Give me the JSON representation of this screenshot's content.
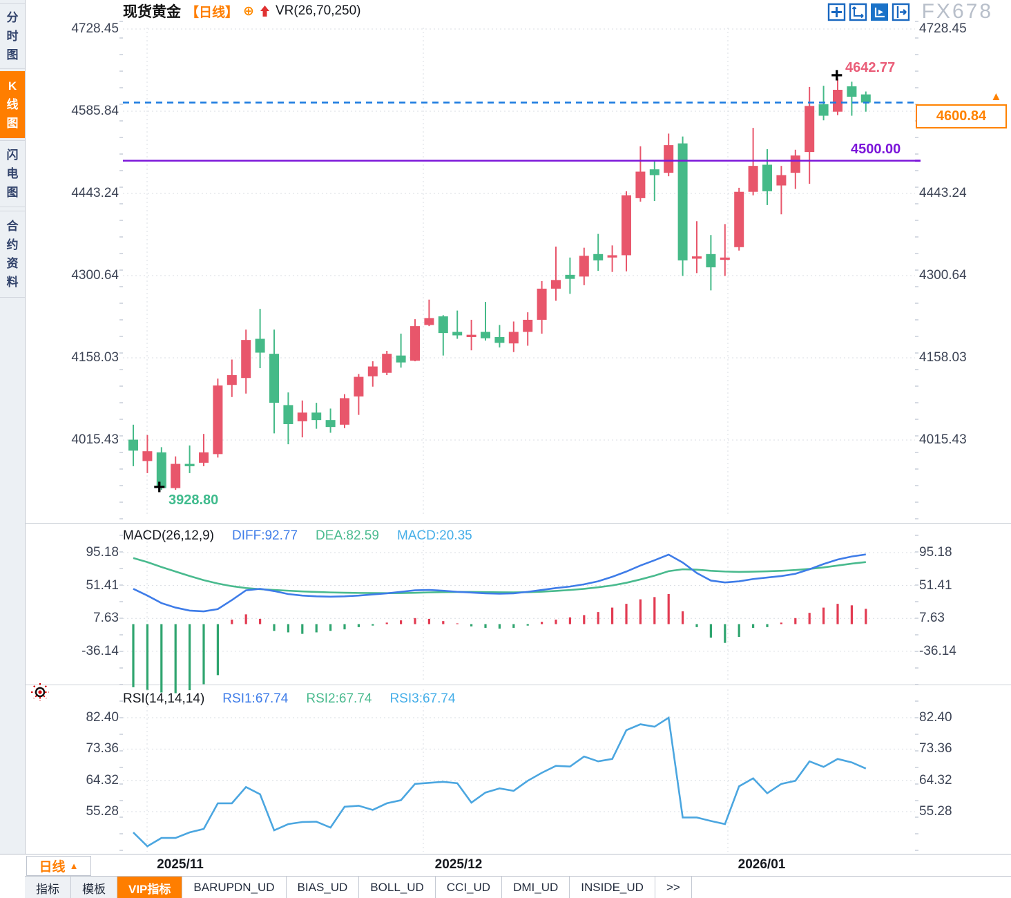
{
  "header": {
    "symbol": "现货黄金",
    "period_tag": "【日线】",
    "plus_glyph": "⊕",
    "indicator": "VR(26,70,250)"
  },
  "sidebar": {
    "items": [
      {
        "label": "分时图",
        "active": false
      },
      {
        "label": "K线图",
        "active": true
      },
      {
        "label": "闪电图",
        "active": false
      },
      {
        "label": "合约资料",
        "active": false
      }
    ]
  },
  "price_panel": {
    "high_label": "4642.77",
    "low_label": "3928.80",
    "current_price_label": "4600.84",
    "hline_label": "4500.00",
    "crosshair_glyph": "+",
    "arrow_glyph": "▲"
  },
  "macd_panel": {
    "title": "MACD(26,12,9)",
    "diff_label": "DIFF:92.77",
    "dea_label": "DEA:82.59",
    "macd_label": "MACD:20.35"
  },
  "rsi_panel": {
    "title": "RSI(14,14,14)",
    "rsi1_label": "RSI1:67.74",
    "rsi2_label": "RSI2:67.74",
    "rsi3_label": "RSI3:67.74"
  },
  "x_axis": {
    "labels": [
      "2025/11",
      "2025/12",
      "2026/01"
    ]
  },
  "period_button": {
    "label": "日线",
    "arrow": "▲"
  },
  "watermark": "FX678",
  "tabs": [
    {
      "label": "指标",
      "active": false
    },
    {
      "label": "模板",
      "active": false
    },
    {
      "label": "VIP指标",
      "active": true
    },
    {
      "label": "BARUPDN_UD",
      "active": false
    },
    {
      "label": "BIAS_UD",
      "active": false
    },
    {
      "label": "BOLL_UD",
      "active": false
    },
    {
      "label": "CCI_UD",
      "active": false
    },
    {
      "label": "DMI_UD",
      "active": false
    },
    {
      "label": "INSIDE_UD",
      "active": false
    },
    {
      "label": ">>",
      "active": false
    }
  ],
  "colors": {
    "up": "#e8566b",
    "down": "#45ba88",
    "hist_up": "#e23b52",
    "hist_down": "#2fa56f",
    "diff_line": "#3e7ce8",
    "dea_line": "#49ba8e",
    "rsi_line": "#4ba6e0",
    "accent_orange": "#ff7e00",
    "purple_line": "#7b16d9",
    "current_line_blue": "#1f7de0",
    "grid": "#d9dde3"
  },
  "chart_data": [
    {
      "type": "candlestick",
      "title": "现货黄金 日线",
      "x_axis_labels": [
        "2025/11",
        "2025/12",
        "2026/01"
      ],
      "y_ticks": [
        4728.45,
        4585.84,
        4443.24,
        4300.64,
        4158.03,
        4015.43
      ],
      "ylim": [
        3900,
        4728.45
      ],
      "high_marker": 4642.77,
      "low_marker": 3928.8,
      "current_price": 4600.84,
      "horizontal_line": 4500.0,
      "ohlc": [
        [
          4016,
          4042,
          3970,
          3997
        ],
        [
          3979,
          4024,
          3958,
          3996
        ],
        [
          3994,
          4003,
          3928.8,
          3932
        ],
        [
          3932,
          3987,
          3929,
          3974
        ],
        [
          3974,
          4006,
          3958,
          3970
        ],
        [
          3976,
          4026,
          3970,
          3994
        ],
        [
          3991,
          4122,
          3985,
          4110
        ],
        [
          4111,
          4155,
          4090,
          4128
        ],
        [
          4123,
          4207,
          4096,
          4189
        ],
        [
          4191,
          4243,
          4140,
          4167
        ],
        [
          4165,
          4207,
          4027,
          4080
        ],
        [
          4076,
          4098,
          4008,
          4043
        ],
        [
          4048,
          4084,
          4020,
          4063
        ],
        [
          4063,
          4080,
          4035,
          4050
        ],
        [
          4050,
          4070,
          4028,
          4038
        ],
        [
          4042,
          4095,
          4036,
          4088
        ],
        [
          4091,
          4130,
          4059,
          4125
        ],
        [
          4126,
          4152,
          4108,
          4143
        ],
        [
          4132,
          4170,
          4128,
          4165
        ],
        [
          4162,
          4200,
          4141,
          4150
        ],
        [
          4153,
          4225,
          4152,
          4213
        ],
        [
          4215,
          4259,
          4213,
          4227
        ],
        [
          4230,
          4232,
          4162,
          4201
        ],
        [
          4203,
          4240,
          4191,
          4197
        ],
        [
          4194,
          4224,
          4171,
          4198
        ],
        [
          4203,
          4255,
          4188,
          4192
        ],
        [
          4194,
          4215,
          4176,
          4184
        ],
        [
          4183,
          4221,
          4168,
          4203
        ],
        [
          4203,
          4237,
          4179,
          4224
        ],
        [
          4224,
          4291,
          4200,
          4278
        ],
        [
          4278,
          4351,
          4257,
          4293
        ],
        [
          4302,
          4332,
          4269,
          4295
        ],
        [
          4299,
          4349,
          4284,
          4335
        ],
        [
          4338,
          4373,
          4309,
          4327
        ],
        [
          4332,
          4353,
          4307,
          4336
        ],
        [
          4336,
          4447,
          4308,
          4440
        ],
        [
          4435,
          4525,
          4429,
          4481
        ],
        [
          4485,
          4500,
          4430,
          4475
        ],
        [
          4479,
          4547,
          4473,
          4527
        ],
        [
          4530,
          4542,
          4300,
          4327
        ],
        [
          4330,
          4395,
          4305,
          4334
        ],
        [
          4338,
          4371,
          4275,
          4315
        ],
        [
          4328,
          4390,
          4300,
          4332
        ],
        [
          4350,
          4453,
          4344,
          4446
        ],
        [
          4446,
          4557,
          4440,
          4491
        ],
        [
          4493,
          4520,
          4423,
          4447
        ],
        [
          4457,
          4491,
          4407,
          4475
        ],
        [
          4479,
          4519,
          4451,
          4509
        ],
        [
          4515,
          4628,
          4460,
          4595
        ],
        [
          4598,
          4630,
          4570,
          4578
        ],
        [
          4585,
          4642.77,
          4579,
          4623
        ],
        [
          4629,
          4637,
          4578,
          4611
        ],
        [
          4615,
          4620,
          4585,
          4600.84
        ]
      ]
    },
    {
      "type": "bar",
      "title": "MACD(26,12,9)",
      "y_ticks": [
        95.18,
        51.41,
        7.63,
        -36.14
      ],
      "legend": [
        "DIFF",
        "DEA",
        "MACD"
      ],
      "latest": {
        "diff": 92.77,
        "dea": 82.59,
        "macd": 20.35
      },
      "diff": [
        47,
        38,
        28,
        22,
        18,
        17,
        20,
        32,
        45,
        47,
        44,
        40,
        38,
        37,
        36.5,
        37,
        38,
        39.5,
        41,
        43,
        45,
        45.5,
        44.5,
        43,
        42,
        41,
        40.5,
        41,
        43,
        45.5,
        48,
        50,
        53,
        57,
        63,
        70,
        78,
        85,
        92.5,
        82,
        68,
        58,
        55.5,
        57,
        60,
        62,
        64,
        67,
        73,
        80,
        86,
        90,
        92.77
      ],
      "dea": [
        88,
        82.5,
        76,
        70,
        64,
        58.5,
        54,
        50.5,
        48,
        46.5,
        45.5,
        44.5,
        43.5,
        42.8,
        42.2,
        41.8,
        41.5,
        41.3,
        41.2,
        41.3,
        41.7,
        42.2,
        42.6,
        42.8,
        42.8,
        42.6,
        42.4,
        42.3,
        42.5,
        43.2,
        44.2,
        45.4,
        47,
        49,
        51.5,
        55,
        59.5,
        64.5,
        70.5,
        73,
        72.5,
        71,
        70,
        69.5,
        69.8,
        70.3,
        71,
        72,
        73.5,
        75.5,
        78,
        80.5,
        82.59
      ],
      "histogram": [
        -84,
        -88,
        -91,
        -92,
        -88,
        -80,
        -68,
        6,
        13,
        7,
        -9,
        -11,
        -13,
        -11,
        -9,
        -7,
        -4,
        -2,
        2,
        5,
        8,
        7,
        4,
        1,
        -3,
        -5,
        -6,
        -5,
        -2,
        3,
        6,
        9,
        12,
        16,
        22,
        27,
        33,
        36,
        40,
        17,
        -4,
        -18,
        -25,
        -17,
        -5,
        -4,
        2,
        8,
        15,
        22,
        27,
        25,
        20.35
      ]
    },
    {
      "type": "line",
      "title": "RSI(14,14,14)",
      "y_ticks": [
        82.4,
        73.36,
        64.32,
        55.28
      ],
      "latest": {
        "rsi1": 67.74,
        "rsi2": 67.74,
        "rsi3": 67.74
      },
      "rsi": [
        49.3,
        45.3,
        47.7,
        47.7,
        49.3,
        50.3,
        57.7,
        57.7,
        62.4,
        60.3,
        49.9,
        51.7,
        52.3,
        52.4,
        50.7,
        56.7,
        57.0,
        55.8,
        57.7,
        58.6,
        63.3,
        63.6,
        63.9,
        63.5,
        57.9,
        60.8,
        62.0,
        61.3,
        64.2,
        66.5,
        68.5,
        68.3,
        71.2,
        69.8,
        70.5,
        78.8,
        80.5,
        79.8,
        82.4,
        53.6,
        53.6,
        52.6,
        51.7,
        62.6,
        64.9,
        60.6,
        63.3,
        64.2,
        69.8,
        68.2,
        70.5,
        69.5,
        67.74
      ]
    }
  ]
}
